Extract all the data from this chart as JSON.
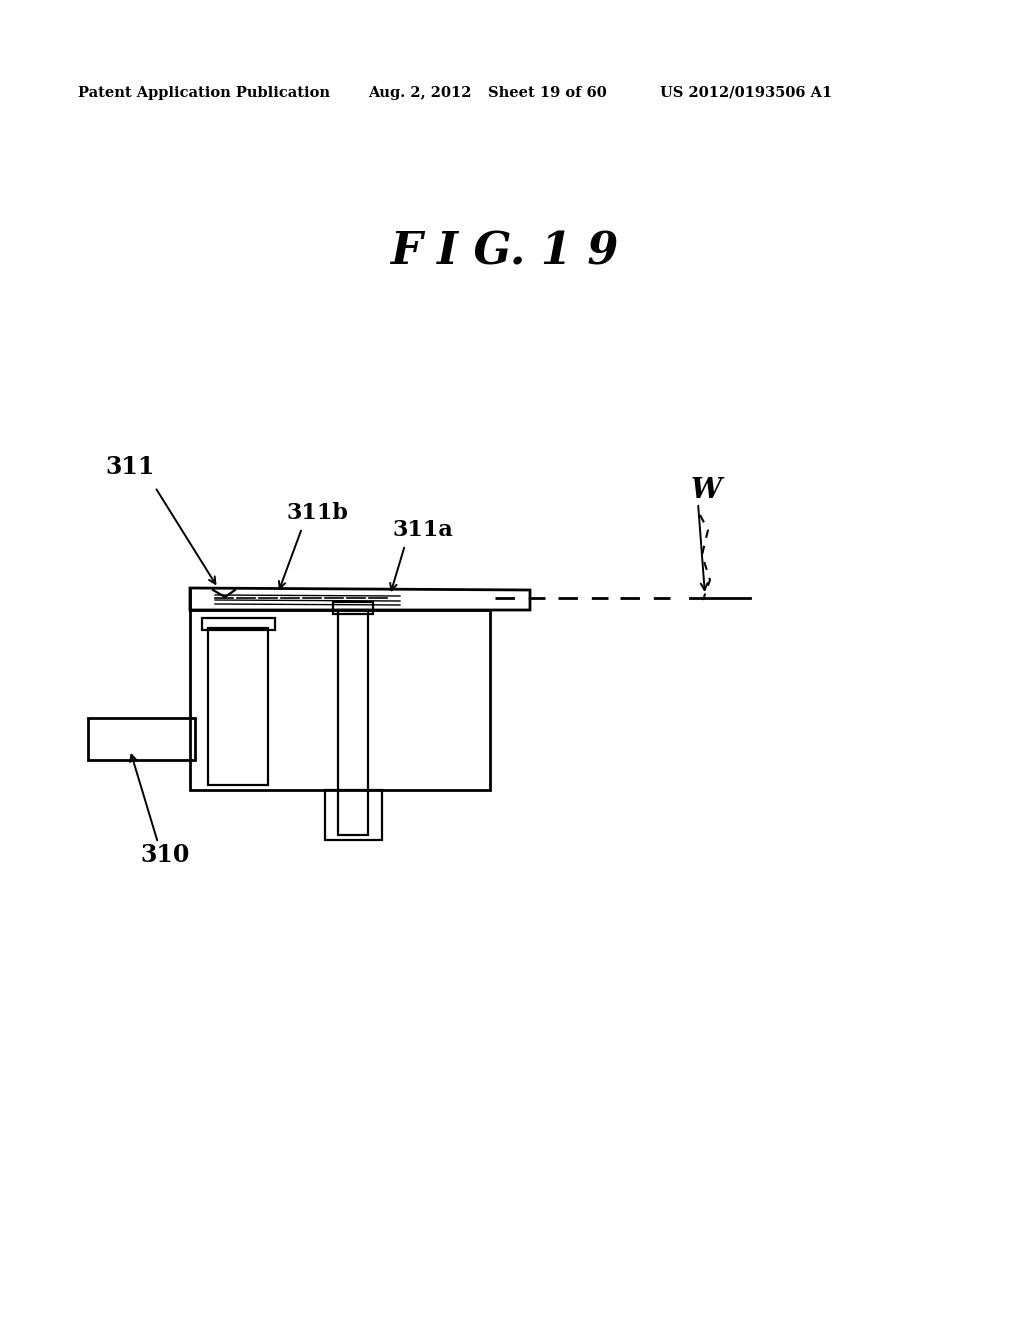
{
  "background_color": "#ffffff",
  "header_text": "Patent Application Publication",
  "header_date": "Aug. 2, 2012",
  "header_sheet": "Sheet 19 of 60",
  "header_patent": "US 2012/0193506 A1",
  "fig_title": "F I G. 1 9",
  "line_color": "#000000",
  "lw": 1.6,
  "lw_thick": 2.0
}
